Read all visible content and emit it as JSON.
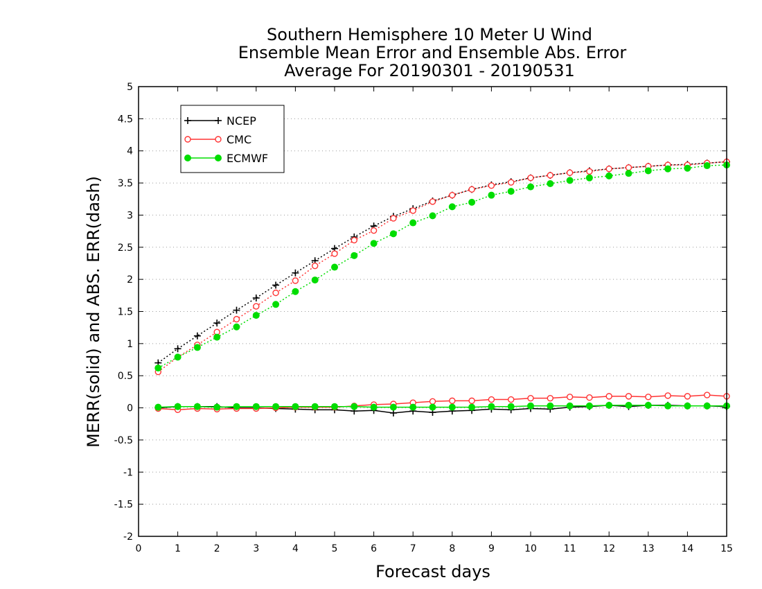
{
  "chart_data": {
    "type": "line",
    "title": [
      "Southern Hemisphere 10 Meter U Wind",
      "Ensemble Mean Error and Ensemble Abs. Error",
      "Average For 20190301 - 20190531"
    ],
    "xlabel": "Forecast days",
    "ylabel": "MERR(solid) and ABS. ERR(dash)",
    "xlim": [
      0,
      15
    ],
    "ylim": [
      -2,
      5
    ],
    "x_ticks": [
      "0",
      "1",
      "2",
      "3",
      "4",
      "5",
      "6",
      "7",
      "8",
      "9",
      "10",
      "11",
      "12",
      "13",
      "14",
      "15"
    ],
    "y_ticks": [
      "-2",
      "-1.5",
      "-1",
      "-0.5",
      "0",
      "0.5",
      "1",
      "1.5",
      "2",
      "2.5",
      "3",
      "3.5",
      "4",
      "4.5",
      "5"
    ],
    "grid": "horizontal dotted",
    "legend_position": "top-left",
    "x": [
      0.5,
      1,
      1.5,
      2,
      2.5,
      3,
      3.5,
      4,
      4.5,
      5,
      5.5,
      6,
      6.5,
      7,
      7.5,
      8,
      8.5,
      9,
      9.5,
      10,
      10.5,
      11,
      11.5,
      12,
      12.5,
      13,
      13.5,
      14,
      14.5,
      15
    ],
    "series": [
      {
        "name": "NCEP",
        "color": "#000000",
        "marker": "plus",
        "mean_error": [
          0.0,
          0.02,
          0.02,
          0.02,
          0.0,
          0.0,
          -0.01,
          -0.02,
          -0.03,
          -0.03,
          -0.05,
          -0.04,
          -0.08,
          -0.05,
          -0.07,
          -0.05,
          -0.04,
          -0.02,
          -0.03,
          -0.01,
          -0.02,
          0.01,
          0.02,
          0.04,
          0.02,
          0.04,
          0.04,
          0.03,
          0.03,
          0.02
        ],
        "abs_error": [
          0.7,
          0.92,
          1.12,
          1.32,
          1.52,
          1.71,
          1.91,
          2.1,
          2.29,
          2.48,
          2.66,
          2.83,
          2.98,
          3.1,
          3.22,
          3.31,
          3.4,
          3.47,
          3.52,
          3.58,
          3.62,
          3.66,
          3.69,
          3.72,
          3.74,
          3.76,
          3.78,
          3.79,
          3.81,
          3.83
        ]
      },
      {
        "name": "CMC",
        "color": "#ff3333",
        "marker": "open-circle",
        "mean_error": [
          -0.01,
          -0.03,
          -0.01,
          -0.02,
          -0.01,
          -0.01,
          0.0,
          0.01,
          0.01,
          0.01,
          0.03,
          0.05,
          0.06,
          0.08,
          0.1,
          0.11,
          0.11,
          0.13,
          0.13,
          0.15,
          0.15,
          0.17,
          0.16,
          0.18,
          0.18,
          0.17,
          0.19,
          0.18,
          0.2,
          0.18
        ],
        "abs_error": [
          0.56,
          0.79,
          0.98,
          1.18,
          1.38,
          1.58,
          1.79,
          1.98,
          2.21,
          2.4,
          2.61,
          2.76,
          2.95,
          3.07,
          3.21,
          3.31,
          3.4,
          3.46,
          3.51,
          3.58,
          3.62,
          3.66,
          3.68,
          3.72,
          3.74,
          3.76,
          3.78,
          3.78,
          3.81,
          3.83
        ]
      },
      {
        "name": "ECMWF",
        "color": "#00dd00",
        "marker": "filled-circle",
        "mean_error": [
          0.01,
          0.02,
          0.02,
          0.01,
          0.02,
          0.02,
          0.02,
          0.02,
          0.02,
          0.02,
          0.02,
          0.01,
          0.01,
          0.01,
          0.01,
          0.01,
          0.01,
          0.02,
          0.02,
          0.03,
          0.03,
          0.03,
          0.03,
          0.04,
          0.04,
          0.04,
          0.03,
          0.03,
          0.03,
          0.03
        ],
        "abs_error": [
          0.62,
          0.79,
          0.94,
          1.1,
          1.26,
          1.44,
          1.61,
          1.81,
          1.99,
          2.19,
          2.37,
          2.56,
          2.71,
          2.88,
          2.99,
          3.13,
          3.2,
          3.31,
          3.37,
          3.44,
          3.49,
          3.54,
          3.58,
          3.61,
          3.65,
          3.69,
          3.72,
          3.73,
          3.77,
          3.78
        ]
      }
    ]
  }
}
